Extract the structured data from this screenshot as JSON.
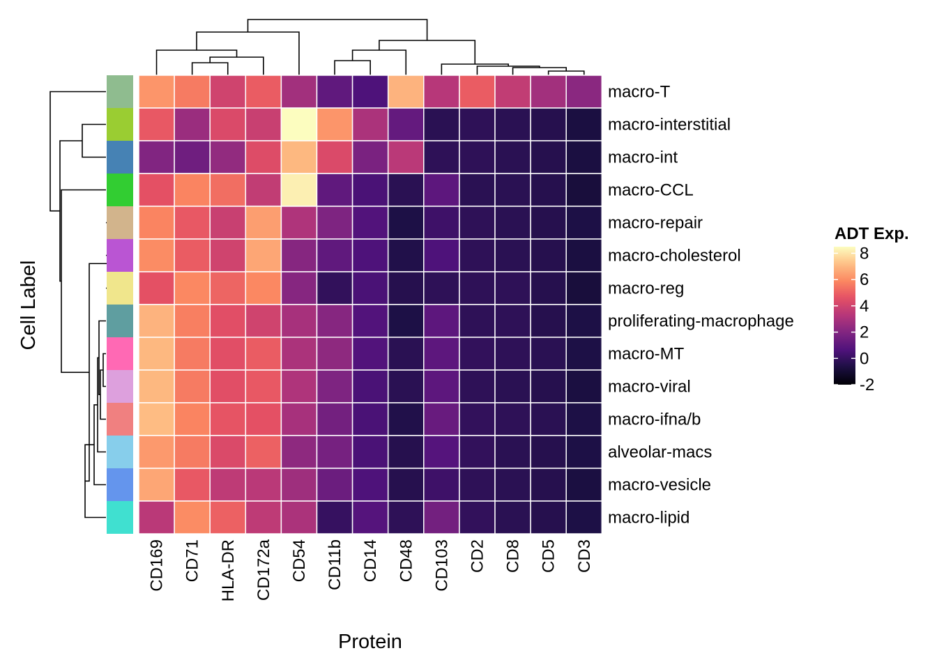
{
  "chart_data": {
    "type": "heatmap",
    "xlabel": "Protein",
    "ylabel": "Cell Label",
    "legend_title": "ADT Exp.",
    "legend_placement": "right",
    "color_scale": "magma",
    "color_range": [
      -2,
      8.5
    ],
    "legend_ticks": [
      "8",
      "6",
      "4",
      "2",
      "0",
      "-2"
    ],
    "legend_tick_values": [
      8,
      6,
      4,
      2,
      0,
      -2
    ],
    "grid": true,
    "columns": [
      "CD169",
      "CD71",
      "HLA-DR",
      "CD172a",
      "CD54",
      "CD11b",
      "CD14",
      "CD48",
      "CD103",
      "CD2",
      "CD8",
      "CD5",
      "CD3"
    ],
    "rows": [
      {
        "label": "macro-T",
        "color": "#8FBC8F",
        "values": [
          6.2,
          5.6,
          4.0,
          4.9,
          2.8,
          1.1,
          0.6,
          6.9,
          3.3,
          4.9,
          3.6,
          2.8,
          2.2
        ]
      },
      {
        "label": "macro-interstitial",
        "color": "#9ACD32",
        "values": [
          4.8,
          2.6,
          4.3,
          3.8,
          8.5,
          6.2,
          3.0,
          1.2,
          -0.3,
          -0.2,
          -0.3,
          -0.4,
          -0.7
        ]
      },
      {
        "label": "macro-int",
        "color": "#4682B4",
        "values": [
          2.0,
          1.5,
          2.4,
          4.4,
          7.0,
          4.3,
          1.8,
          3.4,
          -0.2,
          -0.2,
          -0.3,
          -0.4,
          -0.7
        ]
      },
      {
        "label": "macro-CCL",
        "color": "#32CD32",
        "values": [
          4.6,
          5.8,
          5.3,
          3.6,
          8.2,
          1.1,
          0.5,
          -0.3,
          1.0,
          -0.3,
          -0.3,
          -0.4,
          -0.8
        ]
      },
      {
        "label": "macro-repair",
        "color": "#D2B48C",
        "values": [
          5.8,
          4.8,
          3.8,
          6.4,
          3.1,
          1.9,
          0.7,
          -0.6,
          0.2,
          -0.2,
          -0.3,
          -0.4,
          -0.6
        ]
      },
      {
        "label": "macro-cholesterol",
        "color": "#BA55D3",
        "values": [
          6.0,
          4.9,
          4.0,
          6.6,
          2.1,
          1.1,
          0.6,
          -0.5,
          0.6,
          -0.2,
          -0.3,
          -0.4,
          -0.7
        ]
      },
      {
        "label": "macro-reg",
        "color": "#F0E68C",
        "values": [
          4.6,
          5.9,
          5.1,
          5.9,
          2.1,
          -0.1,
          0.5,
          -0.4,
          -0.2,
          -0.2,
          -0.2,
          -0.4,
          -0.8
        ]
      },
      {
        "label": "proliferating-macrophage",
        "color": "#5F9EA0",
        "values": [
          6.9,
          5.7,
          4.5,
          4.0,
          2.9,
          2.1,
          0.7,
          -0.6,
          1.0,
          -0.2,
          -0.2,
          -0.4,
          -0.6
        ]
      },
      {
        "label": "macro-MT",
        "color": "#FF69B4",
        "values": [
          7.0,
          5.6,
          4.5,
          4.9,
          3.0,
          2.3,
          0.7,
          -0.3,
          1.0,
          -0.1,
          -0.2,
          -0.3,
          -0.6
        ]
      },
      {
        "label": "macro-viral",
        "color": "#DDA0DD",
        "values": [
          7.0,
          5.6,
          4.5,
          4.8,
          3.1,
          1.9,
          0.5,
          -0.3,
          1.0,
          -0.2,
          -0.3,
          -0.4,
          -0.7
        ]
      },
      {
        "label": "macro-ifna/b",
        "color": "#F08080",
        "values": [
          7.1,
          5.8,
          4.7,
          4.6,
          2.9,
          1.6,
          0.5,
          -0.5,
          1.3,
          -0.1,
          -0.2,
          -0.3,
          -0.6
        ]
      },
      {
        "label": "alveolar-macs",
        "color": "#87CEEB",
        "values": [
          6.3,
          5.6,
          4.3,
          5.0,
          2.3,
          1.7,
          0.5,
          -0.4,
          0.8,
          -0.1,
          -0.3,
          -0.4,
          -0.6
        ]
      },
      {
        "label": "macro-vesicle",
        "color": "#6495ED",
        "values": [
          6.6,
          4.8,
          3.5,
          3.4,
          2.7,
          1.4,
          0.6,
          -0.4,
          0.2,
          -0.2,
          -0.3,
          -0.4,
          -0.7
        ]
      },
      {
        "label": "macro-lipid",
        "color": "#40E0D0",
        "values": [
          3.4,
          6.0,
          5.0,
          3.5,
          3.0,
          0.0,
          0.8,
          -0.2,
          1.6,
          -0.1,
          -0.3,
          -0.4,
          -0.6
        ]
      }
    ]
  }
}
